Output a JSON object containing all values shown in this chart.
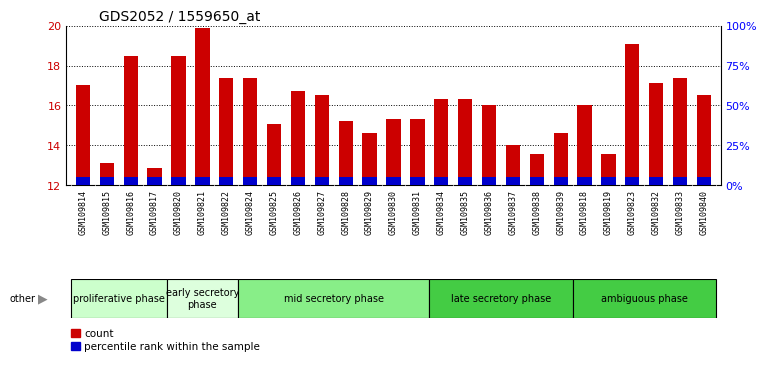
{
  "title": "GDS2052 / 1559650_at",
  "samples": [
    "GSM109814",
    "GSM109815",
    "GSM109816",
    "GSM109817",
    "GSM109820",
    "GSM109821",
    "GSM109822",
    "GSM109824",
    "GSM109825",
    "GSM109826",
    "GSM109827",
    "GSM109828",
    "GSM109829",
    "GSM109830",
    "GSM109831",
    "GSM109834",
    "GSM109835",
    "GSM109836",
    "GSM109837",
    "GSM109838",
    "GSM109839",
    "GSM109818",
    "GSM109819",
    "GSM109823",
    "GSM109832",
    "GSM109833",
    "GSM109840"
  ],
  "count_values": [
    17.0,
    13.1,
    18.5,
    12.85,
    18.5,
    19.9,
    17.35,
    17.35,
    15.05,
    16.7,
    16.5,
    15.2,
    14.6,
    15.3,
    15.3,
    16.3,
    16.3,
    16.0,
    14.0,
    13.55,
    14.6,
    16.0,
    13.55,
    19.1,
    17.1,
    17.35,
    16.5
  ],
  "percentile_values": [
    0.38,
    0.38,
    0.38,
    0.38,
    0.38,
    0.38,
    0.38,
    0.38,
    0.38,
    0.38,
    0.38,
    0.38,
    0.38,
    0.38,
    0.38,
    0.38,
    0.38,
    0.38,
    0.38,
    0.38,
    0.38,
    0.38,
    0.38,
    0.38,
    0.38,
    0.38,
    0.38
  ],
  "bar_base": 12.0,
  "ylim_left": [
    12,
    20
  ],
  "ylim_right": [
    0,
    100
  ],
  "yticks_left": [
    12,
    14,
    16,
    18,
    20
  ],
  "yticks_right": [
    0,
    25,
    50,
    75,
    100
  ],
  "bar_color_count": "#cc0000",
  "bar_color_percentile": "#0000cc",
  "bar_width": 0.6,
  "phases": [
    {
      "label": "proliferative phase",
      "start": 0,
      "end": 3,
      "color": "#ccffcc"
    },
    {
      "label": "early secretory\nphase",
      "start": 4,
      "end": 6,
      "color": "#ddffdd"
    },
    {
      "label": "mid secretory phase",
      "start": 7,
      "end": 14,
      "color": "#88ee88"
    },
    {
      "label": "late secretory phase",
      "start": 15,
      "end": 20,
      "color": "#44cc44"
    },
    {
      "label": "ambiguous phase",
      "start": 21,
      "end": 26,
      "color": "#44cc44"
    }
  ],
  "other_label": "other",
  "legend_count": "count",
  "legend_percentile": "percentile rank within the sample",
  "tick_label_fontsize": 6,
  "title_fontsize": 10,
  "phase_fontsize": 7
}
